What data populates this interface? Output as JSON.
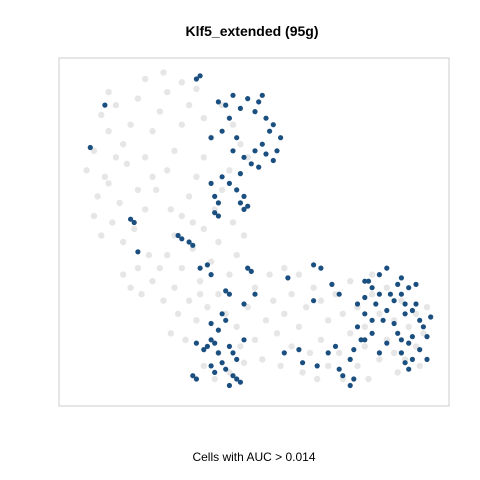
{
  "chart_data": {
    "type": "scatter",
    "title": "Klf5_extended (95g)",
    "xlabel": "Cells with AUC > 0.014",
    "ylabel": "",
    "xlim": [
      0,
      100
    ],
    "ylim": [
      0,
      100
    ],
    "grid": false,
    "legend": "none",
    "colors": {
      "background_cells": "#e6e6e6",
      "highlighted_cells": "#1a4f80",
      "frame": "#cccccc"
    },
    "series": [
      {
        "values": [
          [
            8,
            85
          ],
          [
            10,
            80
          ],
          [
            12,
            88
          ],
          [
            14,
            76
          ],
          [
            15,
            70
          ],
          [
            10,
            64
          ],
          [
            13,
            58
          ],
          [
            18,
            62
          ],
          [
            20,
            72
          ],
          [
            22,
            80
          ],
          [
            24,
            86
          ],
          [
            26,
            92
          ],
          [
            18,
            90
          ],
          [
            16,
            82
          ],
          [
            12,
            72
          ],
          [
            9,
            66
          ],
          [
            7,
            60
          ],
          [
            6,
            54
          ],
          [
            8,
            48
          ],
          [
            11,
            52
          ],
          [
            14,
            46
          ],
          [
            17,
            50
          ],
          [
            20,
            56
          ],
          [
            23,
            62
          ],
          [
            26,
            68
          ],
          [
            28,
            74
          ],
          [
            30,
            82
          ],
          [
            32,
            88
          ],
          [
            34,
            93
          ],
          [
            30,
            95
          ],
          [
            25,
            98
          ],
          [
            20,
            96
          ],
          [
            36,
            84
          ],
          [
            38,
            78
          ],
          [
            36,
            72
          ],
          [
            34,
            66
          ],
          [
            32,
            60
          ],
          [
            30,
            54
          ],
          [
            28,
            48
          ],
          [
            26,
            42
          ],
          [
            24,
            38
          ],
          [
            21,
            42
          ],
          [
            18,
            38
          ],
          [
            16,
            32
          ],
          [
            14,
            36
          ],
          [
            19,
            30
          ],
          [
            22,
            34
          ],
          [
            25,
            28
          ],
          [
            28,
            32
          ],
          [
            30,
            38
          ],
          [
            33,
            44
          ],
          [
            36,
            50
          ],
          [
            39,
            56
          ],
          [
            41,
            62
          ],
          [
            43,
            68
          ],
          [
            40,
            46
          ],
          [
            38,
            40
          ],
          [
            35,
            34
          ],
          [
            32,
            28
          ],
          [
            29,
            24
          ],
          [
            27,
            18
          ],
          [
            31,
            16
          ],
          [
            34,
            22
          ],
          [
            37,
            26
          ],
          [
            40,
            30
          ],
          [
            43,
            36
          ],
          [
            45,
            42
          ],
          [
            47,
            48
          ],
          [
            44,
            52
          ],
          [
            42,
            24
          ],
          [
            45,
            20
          ],
          [
            48,
            26
          ],
          [
            50,
            32
          ],
          [
            46,
            14
          ],
          [
            40,
            12
          ],
          [
            36,
            8
          ],
          [
            39,
            4
          ],
          [
            43,
            6
          ],
          [
            47,
            9
          ],
          [
            50,
            16
          ],
          [
            53,
            22
          ],
          [
            55,
            28
          ],
          [
            58,
            24
          ],
          [
            60,
            30
          ],
          [
            56,
            18
          ],
          [
            60,
            14
          ],
          [
            62,
            20
          ],
          [
            64,
            26
          ],
          [
            66,
            32
          ],
          [
            68,
            28
          ],
          [
            65,
            12
          ],
          [
            68,
            16
          ],
          [
            70,
            22
          ],
          [
            72,
            30
          ],
          [
            74,
            24
          ],
          [
            76,
            18
          ],
          [
            73,
            12
          ],
          [
            70,
            8
          ],
          [
            78,
            26
          ],
          [
            80,
            20
          ],
          [
            82,
            30
          ],
          [
            84,
            24
          ],
          [
            86,
            16
          ],
          [
            88,
            22
          ],
          [
            90,
            28
          ],
          [
            92,
            20
          ],
          [
            94,
            24
          ],
          [
            96,
            18
          ],
          [
            88,
            12
          ],
          [
            84,
            10
          ],
          [
            80,
            14
          ],
          [
            78,
            8
          ],
          [
            91,
            10
          ],
          [
            94,
            14
          ],
          [
            97,
            26
          ],
          [
            86,
            32
          ],
          [
            82,
            36
          ],
          [
            76,
            34
          ],
          [
            62,
            36
          ],
          [
            58,
            38
          ],
          [
            54,
            36
          ],
          [
            10,
            92
          ],
          [
            6,
            74
          ],
          [
            4,
            68
          ],
          [
            22,
            66
          ],
          [
            27,
            56
          ],
          [
            33,
            52
          ],
          [
            41,
            88
          ],
          [
            44,
            82
          ],
          [
            46,
            76
          ],
          [
            48,
            72
          ],
          [
            35,
            30
          ],
          [
            52,
            10
          ],
          [
            57,
            8
          ],
          [
            63,
            6
          ],
          [
            67,
            4
          ],
          [
            74,
            4
          ],
          [
            81,
            4
          ],
          [
            89,
            6
          ],
          [
            95,
            8
          ]
        ]
      },
      {
        "name": "Cells with AUC > 0.014",
        "values": [
          [
            34,
            96
          ],
          [
            35,
            97
          ],
          [
            9,
            88
          ],
          [
            5,
            75
          ],
          [
            40,
            89
          ],
          [
            42,
            88
          ],
          [
            44,
            91
          ],
          [
            46,
            87
          ],
          [
            48,
            90
          ],
          [
            50,
            86
          ],
          [
            52,
            91
          ],
          [
            51,
            89
          ],
          [
            53,
            84
          ],
          [
            54,
            80
          ],
          [
            52,
            76
          ],
          [
            50,
            74
          ],
          [
            53,
            73
          ],
          [
            55,
            71
          ],
          [
            51,
            69
          ],
          [
            49,
            70
          ],
          [
            47,
            72
          ],
          [
            45,
            78
          ],
          [
            43,
            84
          ],
          [
            41,
            80
          ],
          [
            38,
            78
          ],
          [
            44,
            74
          ],
          [
            46,
            67
          ],
          [
            43,
            64
          ],
          [
            45,
            62
          ],
          [
            47,
            60
          ],
          [
            41,
            66
          ],
          [
            38,
            64
          ],
          [
            39,
            60
          ],
          [
            46,
            58
          ],
          [
            47,
            56
          ],
          [
            48,
            57
          ],
          [
            57,
            78
          ],
          [
            56,
            74
          ],
          [
            55,
            82
          ],
          [
            40,
            58
          ],
          [
            39,
            55
          ],
          [
            40,
            54
          ],
          [
            16,
            53
          ],
          [
            17,
            52
          ],
          [
            29,
            48
          ],
          [
            30,
            47
          ],
          [
            32,
            46
          ],
          [
            33,
            45
          ],
          [
            18,
            43
          ],
          [
            35,
            38
          ],
          [
            37,
            39
          ],
          [
            38,
            36
          ],
          [
            48,
            38
          ],
          [
            49,
            37
          ],
          [
            42,
            31
          ],
          [
            43,
            30
          ],
          [
            47,
            27
          ],
          [
            50,
            30
          ],
          [
            41,
            24
          ],
          [
            38,
            21
          ],
          [
            40,
            19
          ],
          [
            42,
            22
          ],
          [
            38,
            16
          ],
          [
            39,
            15
          ],
          [
            37,
            14
          ],
          [
            34,
            15
          ],
          [
            36,
            13
          ],
          [
            40,
            12
          ],
          [
            43,
            14
          ],
          [
            45,
            10
          ],
          [
            41,
            9
          ],
          [
            42,
            7
          ],
          [
            44,
            5
          ],
          [
            45,
            4
          ],
          [
            43,
            2
          ],
          [
            46,
            3
          ],
          [
            44,
            12
          ],
          [
            47,
            16
          ],
          [
            38,
            8
          ],
          [
            39,
            6
          ],
          [
            33,
            5
          ],
          [
            34,
            4
          ],
          [
            59,
            35
          ],
          [
            66,
            39
          ],
          [
            68,
            38
          ],
          [
            71,
            33
          ],
          [
            73,
            30
          ],
          [
            66,
            28
          ],
          [
            62,
            13
          ],
          [
            58,
            12
          ],
          [
            63,
            9
          ],
          [
            67,
            8
          ],
          [
            70,
            12
          ],
          [
            73,
            7
          ],
          [
            74,
            5
          ],
          [
            77,
            4
          ],
          [
            76,
            2
          ],
          [
            77,
            13
          ],
          [
            79,
            16
          ],
          [
            78,
            27
          ],
          [
            80,
            29
          ],
          [
            80,
            34
          ],
          [
            82,
            32
          ],
          [
            84,
            30
          ],
          [
            83,
            27
          ],
          [
            86,
            25
          ],
          [
            85,
            22
          ],
          [
            87,
            30
          ],
          [
            88,
            28
          ],
          [
            89,
            33
          ],
          [
            90,
            30
          ],
          [
            91,
            27
          ],
          [
            92,
            32
          ],
          [
            93,
            25
          ],
          [
            94,
            27
          ],
          [
            95,
            22
          ],
          [
            91,
            24
          ],
          [
            88,
            21
          ],
          [
            89,
            18
          ],
          [
            90,
            16
          ],
          [
            92,
            15
          ],
          [
            93,
            17
          ],
          [
            95,
            13
          ],
          [
            93,
            10
          ],
          [
            91,
            9
          ],
          [
            92,
            7
          ],
          [
            90,
            12
          ],
          [
            86,
            15
          ],
          [
            84,
            12
          ],
          [
            82,
            18
          ],
          [
            80,
            16
          ],
          [
            78,
            20
          ],
          [
            82,
            22
          ],
          [
            80,
            24
          ],
          [
            97,
            17
          ],
          [
            96,
            20
          ],
          [
            98,
            23
          ],
          [
            94,
            33
          ],
          [
            90,
            35
          ],
          [
            86,
            38
          ],
          [
            84,
            36
          ],
          [
            81,
            34
          ],
          [
            97,
            10
          ],
          [
            76,
            10
          ],
          [
            72,
            14
          ]
        ]
      }
    ]
  }
}
